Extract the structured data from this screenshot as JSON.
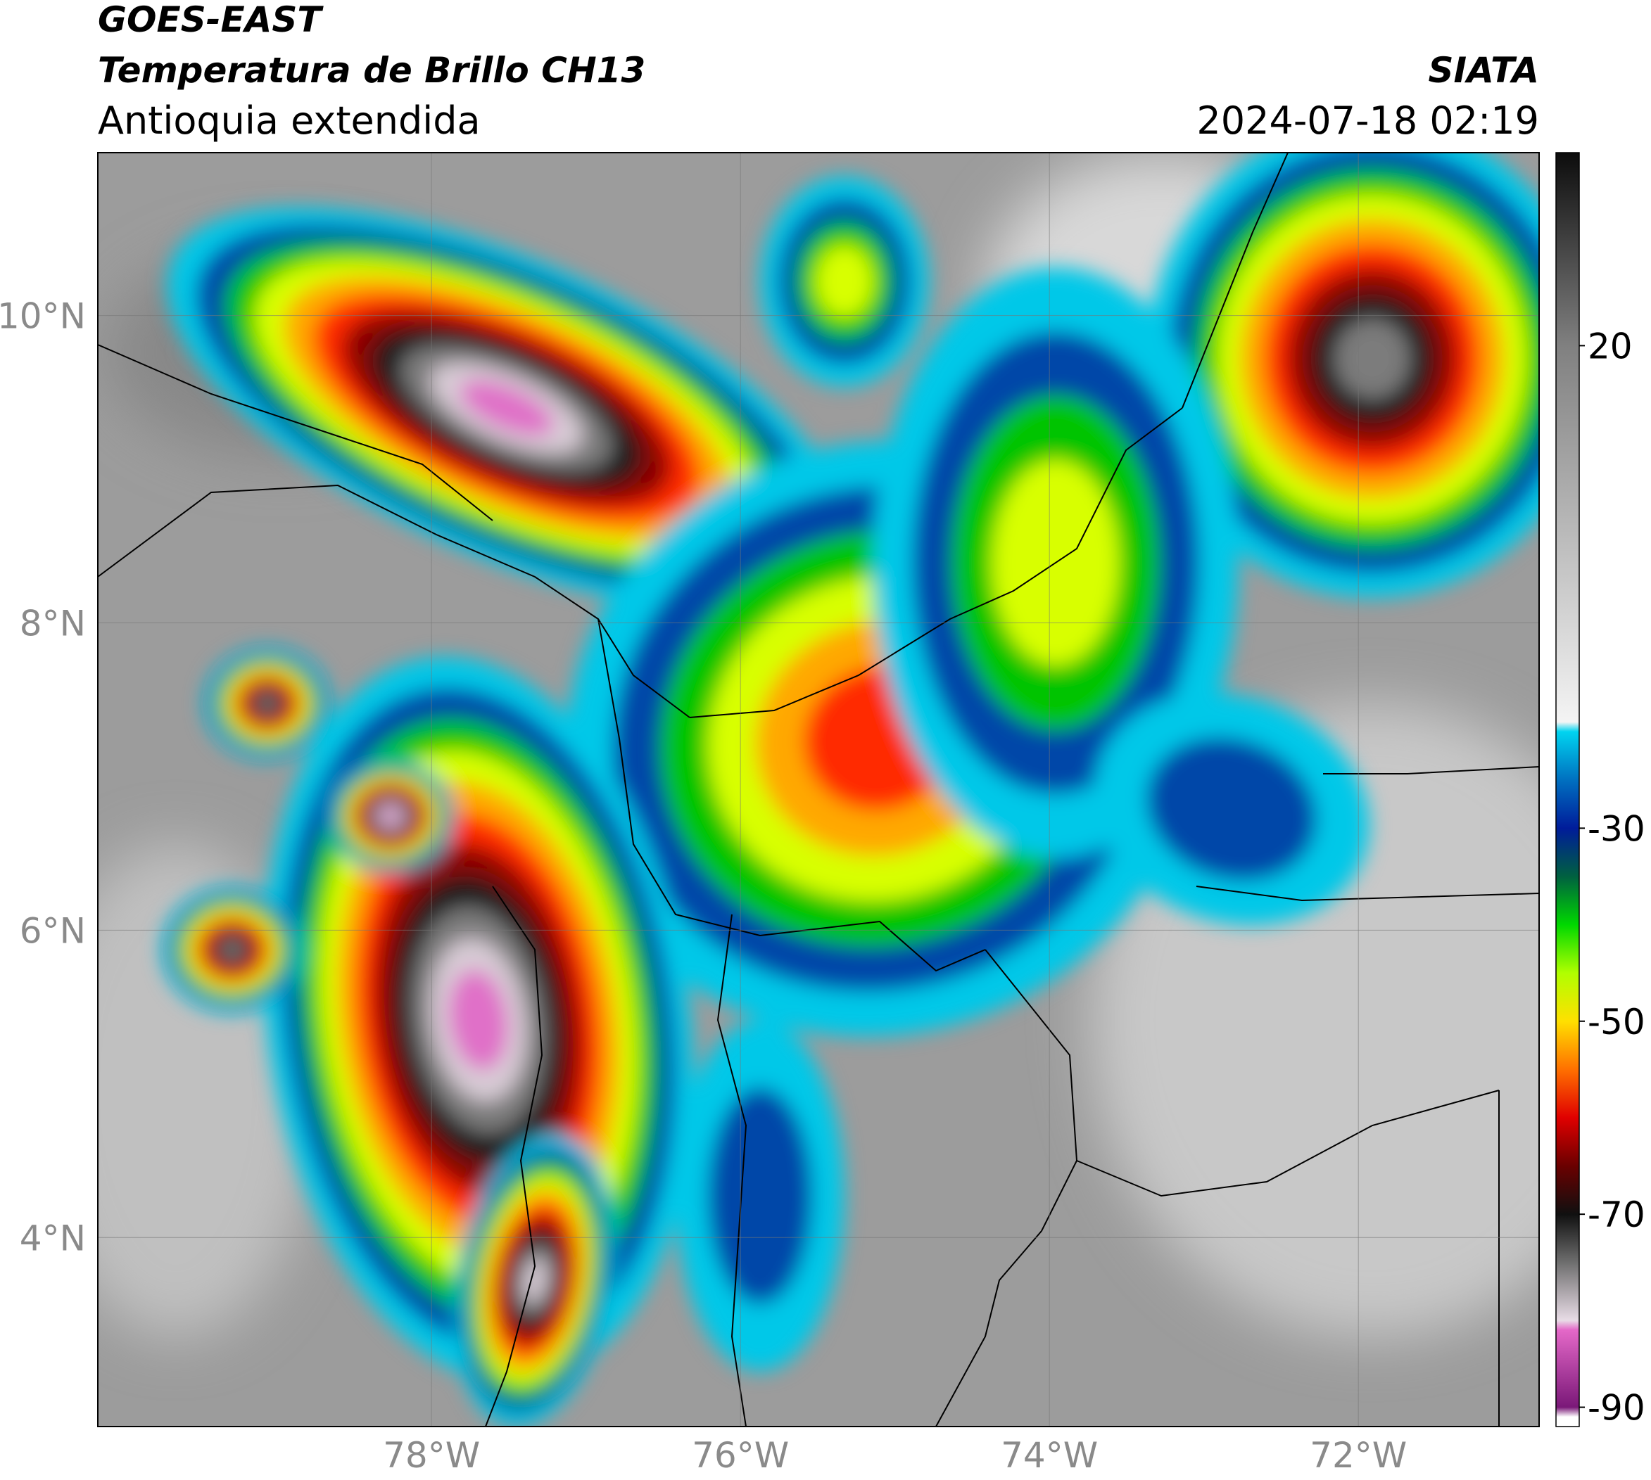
{
  "header": {
    "title": "GOES-EAST",
    "subtitle": "Temperatura de Brillo CH13",
    "region": "Antioquia extendida",
    "source": "SIATA",
    "datetime": "2024-07-18 02:19"
  },
  "map": {
    "xlim": [
      -80.16,
      -70.83
    ],
    "ylim": [
      2.77,
      11.06
    ],
    "xticks": [
      {
        "value": -78,
        "label": "78°W"
      },
      {
        "value": -76,
        "label": "76°W"
      },
      {
        "value": -74,
        "label": "74°W"
      },
      {
        "value": -72,
        "label": "72°W"
      }
    ],
    "yticks": [
      {
        "value": 4,
        "label": "4°N"
      },
      {
        "value": 6,
        "label": "6°N"
      },
      {
        "value": 8,
        "label": "8°N"
      },
      {
        "value": 10,
        "label": "10°N"
      }
    ],
    "grid": true
  },
  "colorbar": {
    "lim": [
      -92,
      40
    ],
    "ticks": [
      20,
      -30,
      -50,
      -70,
      -90
    ],
    "colormap": [
      {
        "value": -92,
        "color": "#ffffff"
      },
      {
        "value": -91,
        "color": "#ffffff"
      },
      {
        "value": -90,
        "color": "#7a1878"
      },
      {
        "value": -82,
        "color": "#e468c8"
      },
      {
        "value": -81,
        "color": "#e8dce6"
      },
      {
        "value": -75,
        "color": "#6e6e6e"
      },
      {
        "value": -70,
        "color": "#101010"
      },
      {
        "value": -65,
        "color": "#6a0000"
      },
      {
        "value": -60,
        "color": "#e00000"
      },
      {
        "value": -55,
        "color": "#ff7000"
      },
      {
        "value": -50,
        "color": "#ffe000"
      },
      {
        "value": -45,
        "color": "#b0ff00"
      },
      {
        "value": -40,
        "color": "#00d800"
      },
      {
        "value": -35,
        "color": "#006040"
      },
      {
        "value": -30,
        "color": "#001c9a"
      },
      {
        "value": -25,
        "color": "#0070c0"
      },
      {
        "value": -20,
        "color": "#00d4f0"
      },
      {
        "value": -19,
        "color": "#f4f4f4"
      },
      {
        "value": 20,
        "color": "#808080"
      },
      {
        "value": 40,
        "color": "#0c0c0c"
      }
    ]
  }
}
